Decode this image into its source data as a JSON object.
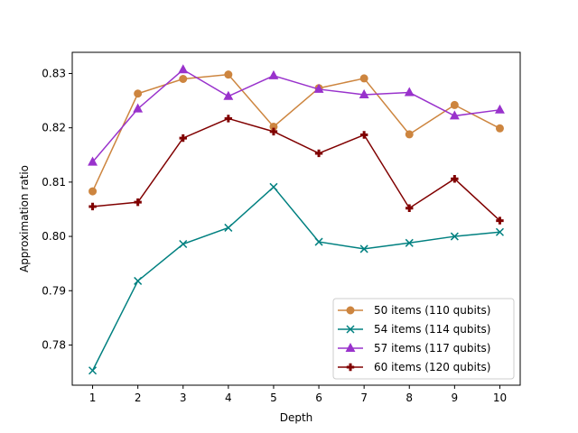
{
  "chart_data": {
    "type": "line",
    "xlabel": "Depth",
    "ylabel": "Approximation ratio",
    "x": [
      1,
      2,
      3,
      4,
      5,
      6,
      7,
      8,
      9,
      10
    ],
    "xticks": [
      "1",
      "2",
      "3",
      "4",
      "5",
      "6",
      "7",
      "8",
      "9",
      "10"
    ],
    "yticks": [
      "0.78",
      "0.79",
      "0.80",
      "0.81",
      "0.82",
      "0.83"
    ],
    "xlim": [
      0.55,
      10.45
    ],
    "ylim": [
      0.7726,
      0.8339
    ],
    "grid": false,
    "legend_position": "lower-right",
    "series": [
      {
        "name": "50 items (110 qubits)",
        "color": "#cd853f",
        "marker": "circle",
        "values": [
          0.8083,
          0.8263,
          0.829,
          0.8298,
          0.8202,
          0.8273,
          0.8291,
          0.8188,
          0.8242,
          0.8199
        ]
      },
      {
        "name": "54 items (114 qubits)",
        "color": "#008080",
        "marker": "x",
        "values": [
          0.7753,
          0.7918,
          0.7986,
          0.8016,
          0.8091,
          0.799,
          0.7977,
          0.7988,
          0.8,
          0.8008
        ]
      },
      {
        "name": "57 items (117 qubits)",
        "color": "#9932cc",
        "marker": "triangle",
        "values": [
          0.8137,
          0.8235,
          0.8307,
          0.8258,
          0.8296,
          0.8271,
          0.8261,
          0.8265,
          0.8222,
          0.8233
        ]
      },
      {
        "name": "60 items (120 qubits)",
        "color": "#800000",
        "marker": "plus",
        "values": [
          0.8055,
          0.8063,
          0.8181,
          0.8217,
          0.8193,
          0.8153,
          0.8187,
          0.8052,
          0.8106,
          0.8029
        ]
      }
    ]
  }
}
